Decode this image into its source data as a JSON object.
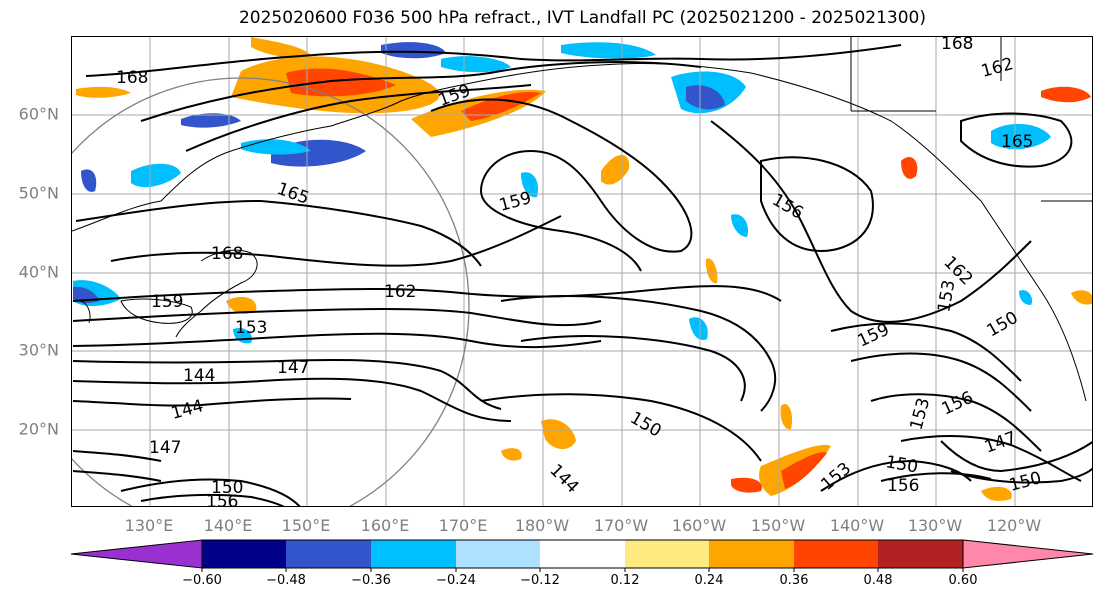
{
  "title": "2025020600 F036 500 hPa refract., IVT Landfall PC (2025021200 - 2025021300)",
  "map": {
    "lat_labels": [
      "60°N",
      "50°N",
      "40°N",
      "30°N",
      "20°N"
    ],
    "lon_labels": [
      "130°E",
      "140°E",
      "150°E",
      "160°E",
      "170°E",
      "180°W",
      "170°W",
      "160°W",
      "150°W",
      "140°W",
      "130°W",
      "120°W"
    ],
    "contour_labels": [
      "168",
      "159",
      "165",
      "168",
      "159",
      "162",
      "153",
      "147",
      "144",
      "144",
      "147",
      "159",
      "156",
      "162",
      "153",
      "159",
      "150",
      "150",
      "144",
      "153",
      "156",
      "150",
      "147",
      "150",
      "156",
      "150",
      "156",
      "165",
      "153",
      "168",
      "162"
    ],
    "colors": {
      "grid": "#aaaaaa",
      "coast": "#000000",
      "contour": "#000000",
      "range_ring": "#808080"
    }
  },
  "colorbar": {
    "ticks": [
      "−0.60",
      "−0.48",
      "−0.36",
      "−0.24",
      "−0.12",
      "0.12",
      "0.24",
      "0.36",
      "0.48",
      "0.60"
    ],
    "colors": [
      "#9b30d0",
      "#00008b",
      "#3355cc",
      "#00bfff",
      "#aee0ff",
      "#ffffff",
      "#ffea80",
      "#ffa500",
      "#ff4500",
      "#b22222",
      "#ff88aa"
    ]
  }
}
